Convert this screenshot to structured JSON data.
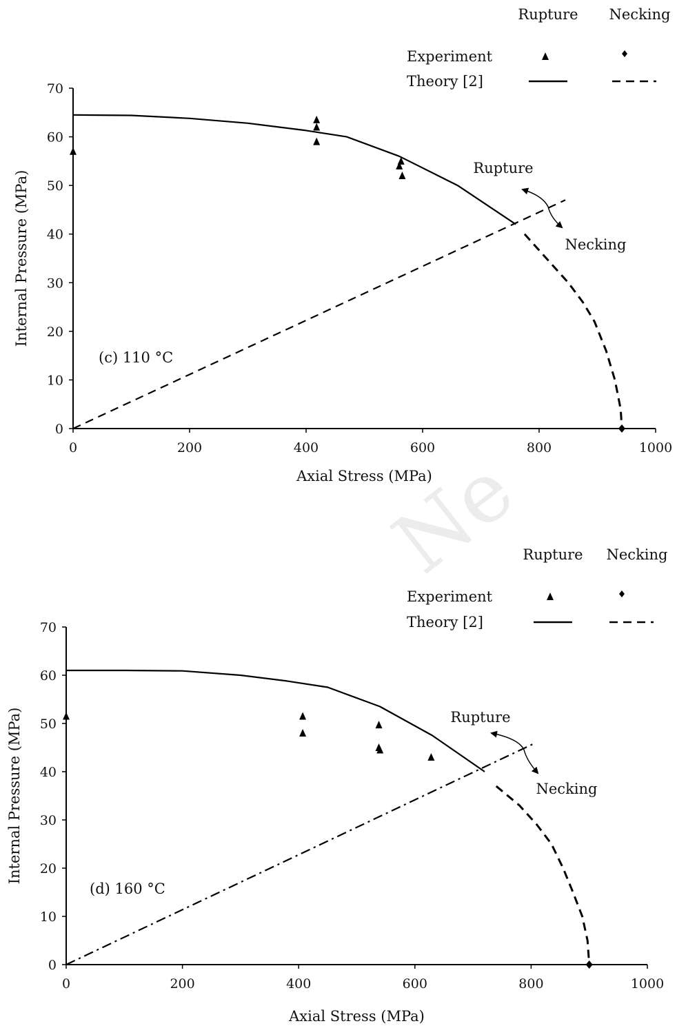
{
  "chart_data": [
    {
      "type": "scatter",
      "title": "",
      "xlabel": "Axial Stress (MPa)",
      "ylabel": "Internal Pressure (MPa)",
      "xlim": [
        0,
        1000
      ],
      "ylim": [
        0,
        70
      ],
      "x_ticks": [
        "0",
        "200",
        "400",
        "600",
        "800",
        "1000"
      ],
      "y_ticks": [
        "0",
        "10",
        "20",
        "30",
        "40",
        "50",
        "60",
        "70"
      ],
      "grid": false,
      "annotation": "(c) 110 °C",
      "legend": {
        "placement": "top-right",
        "columns": [
          "Rupture",
          "Necking"
        ],
        "rows": [
          "Experiment",
          "Theory [2]"
        ]
      },
      "arrow_labels": {
        "upper": "Rupture",
        "lower": "Necking"
      },
      "series": [
        {
          "name": "Experiment Rupture",
          "marker": "triangle",
          "x": [
            0,
            418,
            418,
            418,
            560,
            563,
            565
          ],
          "y": [
            57,
            63.5,
            62,
            59,
            54,
            55,
            52
          ]
        },
        {
          "name": "Experiment Necking",
          "marker": "diamond",
          "x": [
            942
          ],
          "y": [
            0
          ]
        },
        {
          "name": "Theory [2] Rupture",
          "line": "solid",
          "x": [
            0,
            100,
            200,
            300,
            400,
            470,
            560,
            660,
            760
          ],
          "y": [
            64.5,
            64.4,
            63.8,
            62.8,
            61.3,
            60,
            56,
            50,
            42
          ]
        },
        {
          "name": "Theory [2] Necking",
          "line": "dashed",
          "x": [
            775,
            820,
            850,
            875,
            895,
            915,
            930,
            940,
            942
          ],
          "y": [
            40,
            34,
            30,
            26,
            22,
            16,
            10,
            4,
            0
          ]
        },
        {
          "name": "",
          "line": "dashed",
          "x": [
            0,
            845
          ],
          "y": [
            0,
            47
          ]
        }
      ]
    },
    {
      "type": "scatter",
      "title": "",
      "xlabel": "Axial Stress (MPa)",
      "ylabel": "Internal Pressure (MPa)",
      "xlim": [
        0,
        1000
      ],
      "ylim": [
        0,
        70
      ],
      "x_ticks": [
        "0",
        "200",
        "400",
        "600",
        "800",
        "1000"
      ],
      "y_ticks": [
        "0",
        "10",
        "20",
        "30",
        "40",
        "50",
        "60",
        "70"
      ],
      "grid": false,
      "annotation": "(d) 160 °C",
      "legend": {
        "placement": "top-right",
        "columns": [
          "Rupture",
          "Necking"
        ],
        "rows": [
          "Experiment",
          "Theory [2]"
        ]
      },
      "arrow_labels": {
        "upper": "Rupture",
        "lower": "Necking"
      },
      "series": [
        {
          "name": "Experiment Rupture",
          "marker": "triangle",
          "x": [
            0,
            407,
            407,
            538,
            538,
            540,
            628
          ],
          "y": [
            51.5,
            51.5,
            48,
            49.7,
            45,
            44.5,
            43
          ]
        },
        {
          "name": "Experiment Necking",
          "marker": "diamond",
          "x": [
            900
          ],
          "y": [
            0
          ]
        },
        {
          "name": "Theory [2] Rupture",
          "line": "solid",
          "x": [
            0,
            100,
            200,
            300,
            380,
            450,
            540,
            630,
            720
          ],
          "y": [
            61,
            61,
            60.9,
            60,
            58.8,
            57.5,
            53.5,
            47.5,
            40
          ]
        },
        {
          "name": "Theory [2] Necking",
          "line": "dashed",
          "x": [
            740,
            780,
            810,
            835,
            855,
            872,
            888,
            897,
            900
          ],
          "y": [
            37,
            33,
            29,
            25,
            20,
            15,
            10,
            5,
            0
          ]
        },
        {
          "name": "",
          "line": "dashdot",
          "x": [
            0,
            808
          ],
          "y": [
            0,
            46
          ]
        }
      ]
    }
  ]
}
